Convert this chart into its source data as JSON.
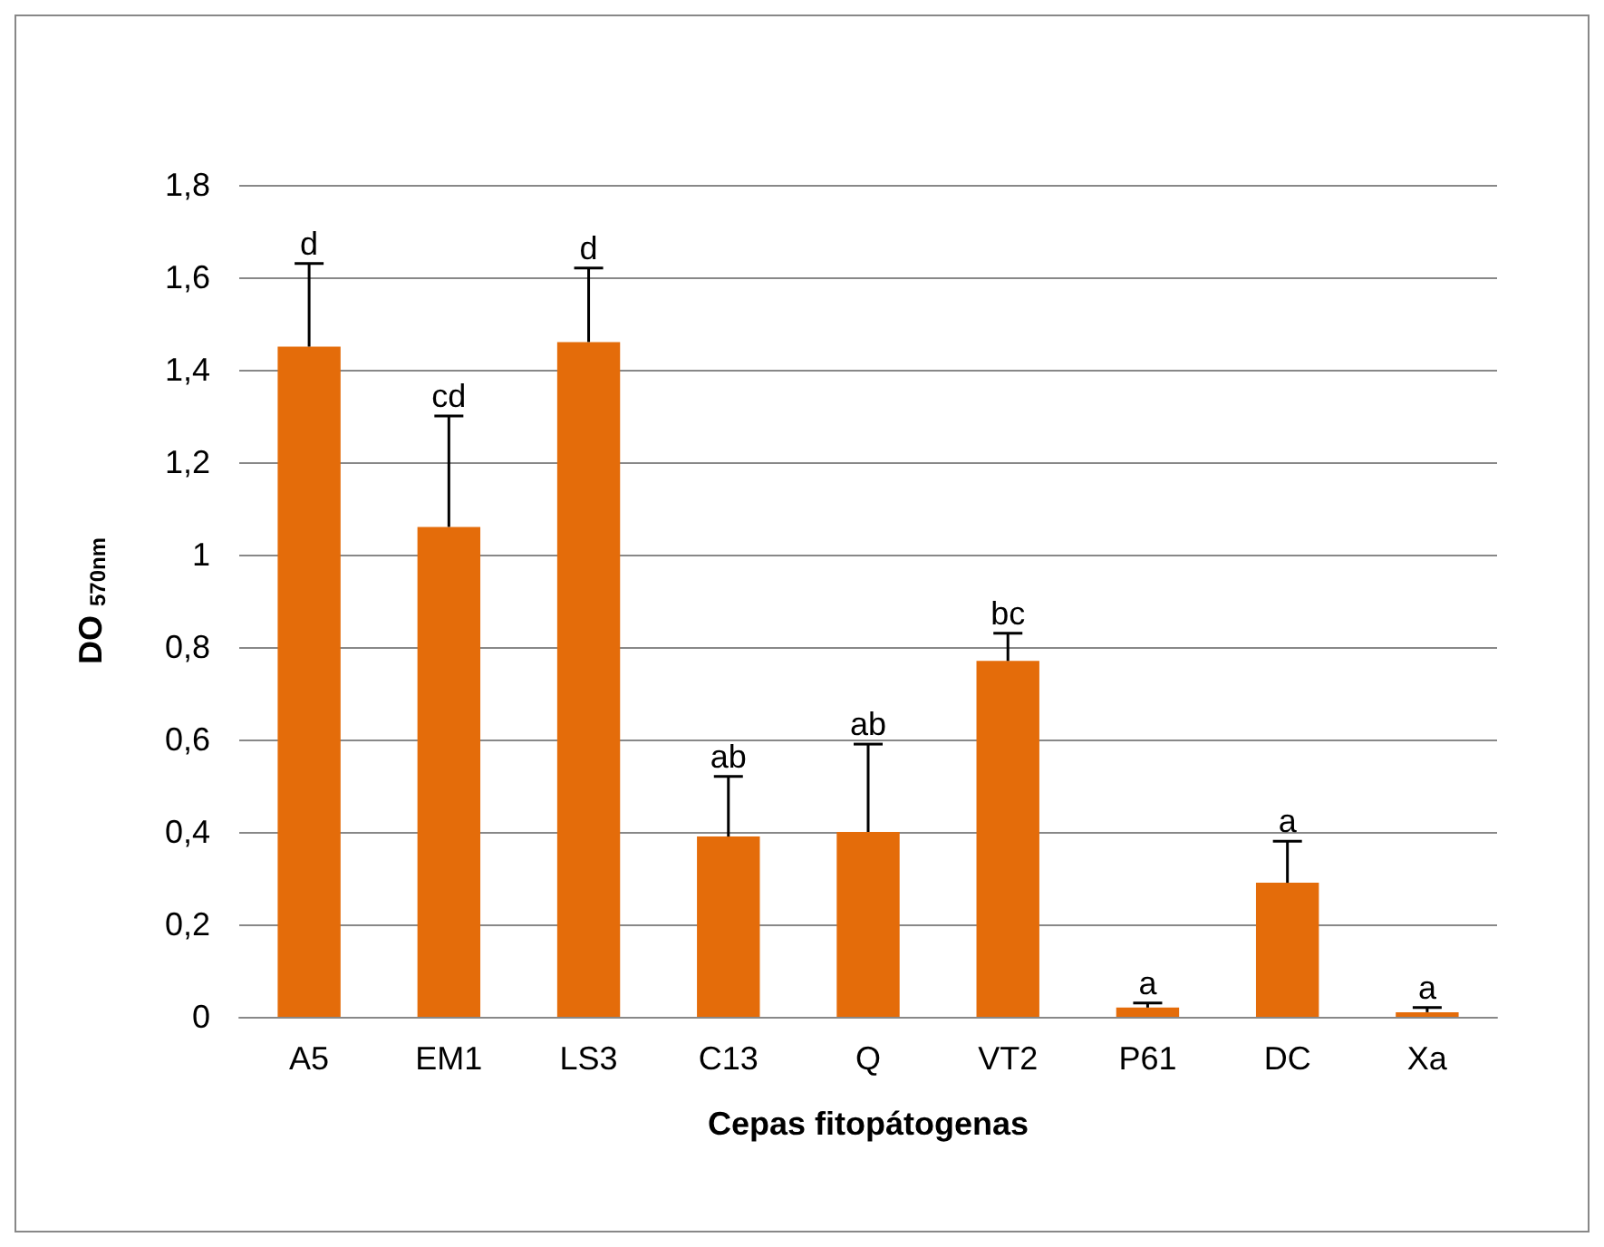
{
  "chart_data": {
    "type": "bar",
    "xlabel": "Cepas fitopátogenas",
    "ylabel": "DO $_{570nm}$",
    "categories": [
      "A5",
      "EM1",
      "LS3",
      "C13",
      "Q",
      "VT2",
      "P61",
      "DC",
      "Xa"
    ],
    "values": [
      1.45,
      1.06,
      1.46,
      0.39,
      0.4,
      0.77,
      0.02,
      0.29,
      0.01
    ],
    "errors": [
      [
        1.45,
        1.63
      ],
      [
        1.06,
        1.3
      ],
      [
        1.46,
        1.62
      ],
      [
        0.39,
        0.52
      ],
      [
        0.4,
        0.59
      ],
      [
        0.77,
        0.83
      ],
      [
        0.02,
        0.03
      ],
      [
        0.29,
        0.38
      ],
      [
        0.01,
        0.02
      ]
    ],
    "color": "#e46c0a",
    "ylim": [
      0,
      1.8
    ],
    "yticks": [
      0,
      {
        "value": 0.2,
        "label": "0,2"
      },
      {
        "value": 0.4,
        "label": "0,4"
      },
      {
        "value": 0.6,
        "label": "0,6"
      },
      {
        "value": 0.8,
        "label": "0,8"
      },
      1,
      {
        "value": 1.2,
        "label": "1,2"
      },
      {
        "value": 1.4,
        "label": "1,4"
      },
      {
        "value": 1.6,
        "label": "1,6"
      },
      {
        "value": 1.8,
        "label": "1,8"
      }
    ],
    "grid": "y",
    "annotations": [
      {
        "text": "d",
        "x": "A5",
        "y": 1.63
      },
      {
        "text": "cd",
        "x": "EM1",
        "y": 1.3
      },
      {
        "text": "d",
        "x": "LS3",
        "y": 1.62
      },
      {
        "text": "ab",
        "x": "C13",
        "y": 0.52
      },
      {
        "text": "ab",
        "x": "Q",
        "y": 0.59
      },
      {
        "text": "bc",
        "x": "VT2",
        "y": 0.83
      },
      {
        "text": "a",
        "x": "P61",
        "y": 0.03
      },
      {
        "text": "a",
        "x": "DC",
        "y": 0.38
      },
      {
        "text": "a",
        "x": "Xa",
        "y": 0.02
      }
    ]
  }
}
